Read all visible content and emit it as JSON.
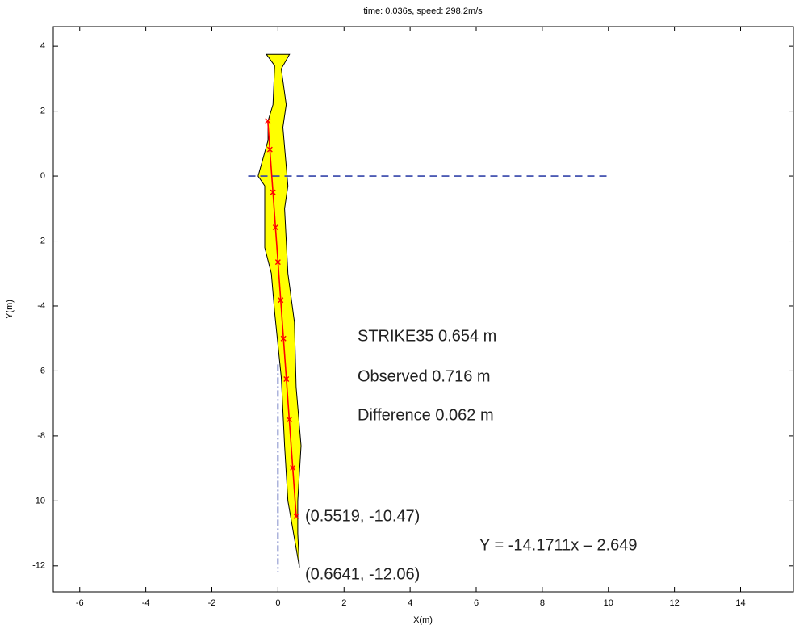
{
  "chart_data": {
    "type": "line",
    "title": "time:  0.036s,  speed:  298.2m/s",
    "xlabel": "X(m)",
    "ylabel": "Y(m)",
    "xlim": [
      -6.8,
      15.6
    ],
    "ylim": [
      -12.8,
      4.6
    ],
    "xticks": [
      -6,
      -4,
      -2,
      0,
      2,
      4,
      6,
      8,
      10,
      12,
      14
    ],
    "yticks": [
      -12,
      -10,
      -8,
      -6,
      -4,
      -2,
      0,
      2,
      4
    ],
    "series": [
      {
        "color": "#ffff00",
        "fill": true,
        "x": [
          -0.35,
          -0.1,
          -0.15,
          -0.3,
          -0.3,
          -0.6,
          -0.4,
          -0.4,
          -0.2,
          -0.1,
          0.1,
          0.2,
          0.3,
          0.65,
          0.6,
          0.6,
          0.7,
          0.55,
          0.5,
          0.3,
          0.2,
          0.3,
          0.15,
          0.25,
          0.1,
          0.35
        ],
        "values": [
          3.75,
          3.4,
          2.2,
          1.7,
          1.1,
          0,
          -0.3,
          -2.2,
          -3,
          -4.2,
          -6.2,
          -8.3,
          -10,
          -12.05,
          -11,
          -10,
          -8.3,
          -6.5,
          -4.5,
          -3,
          -1,
          -0.3,
          1.5,
          2.2,
          3.3,
          3.75
        ]
      },
      {
        "color": "#ff0000",
        "markers": true,
        "x": [
          -0.307,
          -0.245,
          -0.152,
          -0.075,
          0,
          0.083,
          0.166,
          0.254,
          0.342,
          0.447,
          0.5519
        ],
        "values": [
          1.7,
          0.82,
          -0.5,
          -1.58,
          -2.649,
          -3.82,
          -5,
          -6.25,
          -7.5,
          -8.98,
          -10.47
        ]
      },
      {
        "color": "#3344aa",
        "dash": "9 6",
        "x": [
          -0.9,
          10
        ],
        "values": [
          0,
          0
        ]
      },
      {
        "color": "#3344aa",
        "dash": "8 3 2 3",
        "x": [
          0,
          0
        ],
        "values": [
          -5.8,
          -12.2
        ]
      }
    ],
    "annotations": [
      "STRIKE35 0.654 m",
      "Observed 0.716 m",
      "Difference 0.062 m",
      "(0.5519, -10.47)",
      "(0.6641, -12.06)",
      "Y = -14.1711x – 2.649"
    ]
  }
}
